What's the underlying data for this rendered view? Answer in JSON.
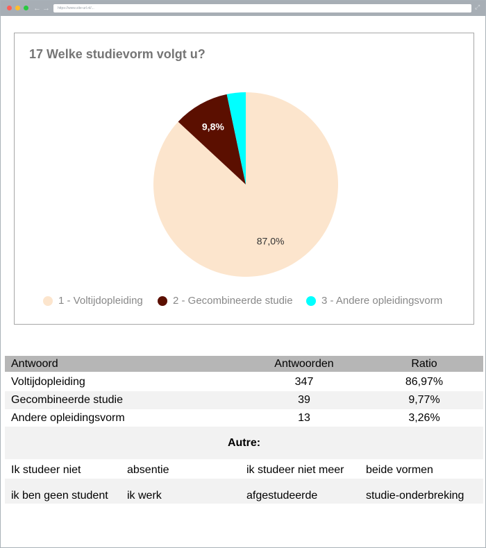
{
  "browser": {
    "url": "https://www.site-url.nl/..."
  },
  "chart_data": {
    "type": "pie",
    "title": "17 Welke studievorm volgt u?",
    "categories": [
      "1 - Voltijdopleiding",
      "2 - Gecombineerde studie",
      "3 - Andere opleidingsvorm"
    ],
    "values": [
      87.0,
      9.8,
      3.3
    ],
    "colors": [
      "#fce5cd",
      "#5b0f00",
      "#00ffff"
    ],
    "data_labels": [
      "87,0%",
      "9,8%",
      ""
    ],
    "legend_position": "bottom"
  },
  "table": {
    "headers": [
      "Antwoord",
      "Antwoorden",
      "Ratio"
    ],
    "rows": [
      [
        "Voltijdopleiding",
        "347",
        "86,97%"
      ],
      [
        "Gecombineerde studie",
        "39",
        "9,77%"
      ],
      [
        "Andere opleidingsvorm",
        "13",
        "3,26%"
      ]
    ],
    "autre_title": "Autre:",
    "autre_items": [
      [
        "Ik studeer niet",
        "absentie",
        "ik studeer niet meer",
        "beide vormen"
      ],
      [
        "ik ben geen student",
        "ik werk",
        "afgestudeerde",
        "studie-onderbreking"
      ]
    ]
  }
}
